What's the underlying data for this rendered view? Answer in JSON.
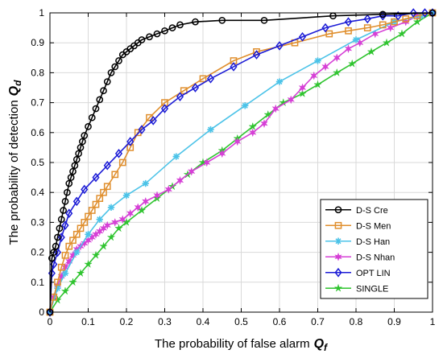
{
  "chart_data": {
    "type": "line",
    "xlabel": "The probability of false alarm",
    "xlabel_symbol": "Q",
    "xlabel_sub": "f",
    "ylabel": "The probability of detection",
    "ylabel_symbol": "Q",
    "ylabel_sub": "d",
    "xlim": [
      0,
      1
    ],
    "ylim": [
      0,
      1
    ],
    "xticks": [
      "0",
      "0.1",
      "0.2",
      "0.3",
      "0.4",
      "0.5",
      "0.6",
      "0.7",
      "0.8",
      "0.9",
      "1"
    ],
    "yticks": [
      "0",
      "0.1",
      "0.2",
      "0.3",
      "0.4",
      "0.5",
      "0.6",
      "0.7",
      "0.8",
      "0.9",
      "1"
    ],
    "grid": true,
    "legend_position": "lower-right",
    "series": [
      {
        "name": "D-S Cre",
        "color": "#000000",
        "marker": "circle",
        "x": [
          0,
          0.005,
          0.01,
          0.015,
          0.02,
          0.025,
          0.03,
          0.035,
          0.04,
          0.045,
          0.05,
          0.055,
          0.06,
          0.065,
          0.07,
          0.075,
          0.08,
          0.085,
          0.09,
          0.1,
          0.11,
          0.12,
          0.13,
          0.14,
          0.15,
          0.16,
          0.17,
          0.18,
          0.19,
          0.2,
          0.21,
          0.22,
          0.23,
          0.24,
          0.26,
          0.28,
          0.3,
          0.32,
          0.34,
          0.38,
          0.45,
          0.56,
          0.74,
          0.87,
          1.0
        ],
        "y": [
          0,
          0.18,
          0.2,
          0.22,
          0.25,
          0.28,
          0.31,
          0.34,
          0.37,
          0.4,
          0.43,
          0.45,
          0.47,
          0.49,
          0.51,
          0.53,
          0.55,
          0.57,
          0.59,
          0.62,
          0.65,
          0.68,
          0.71,
          0.74,
          0.77,
          0.8,
          0.82,
          0.84,
          0.86,
          0.87,
          0.88,
          0.89,
          0.9,
          0.91,
          0.92,
          0.93,
          0.94,
          0.95,
          0.96,
          0.97,
          0.975,
          0.975,
          0.99,
          0.995,
          1.0
        ]
      },
      {
        "name": "D-S Men",
        "color": "#e08f2e",
        "marker": "square",
        "x": [
          0,
          0.01,
          0.02,
          0.03,
          0.04,
          0.05,
          0.06,
          0.07,
          0.08,
          0.09,
          0.1,
          0.11,
          0.12,
          0.13,
          0.14,
          0.15,
          0.17,
          0.19,
          0.21,
          0.23,
          0.26,
          0.3,
          0.35,
          0.4,
          0.48,
          0.54,
          0.64,
          0.73,
          0.78,
          0.83,
          0.87,
          0.9,
          0.93,
          0.96,
          1.0
        ],
        "y": [
          0,
          0.05,
          0.1,
          0.15,
          0.19,
          0.22,
          0.24,
          0.26,
          0.28,
          0.3,
          0.32,
          0.34,
          0.36,
          0.38,
          0.4,
          0.42,
          0.46,
          0.5,
          0.55,
          0.6,
          0.65,
          0.7,
          0.74,
          0.78,
          0.84,
          0.87,
          0.9,
          0.93,
          0.94,
          0.95,
          0.96,
          0.97,
          0.98,
          0.99,
          1.0
        ]
      },
      {
        "name": "D-S Han",
        "color": "#4cc3e8",
        "marker": "asterisk",
        "x": [
          0,
          0.02,
          0.04,
          0.07,
          0.1,
          0.13,
          0.16,
          0.2,
          0.25,
          0.33,
          0.42,
          0.51,
          0.6,
          0.7,
          0.8,
          0.9,
          0.97,
          1.0
        ],
        "y": [
          0,
          0.08,
          0.13,
          0.2,
          0.26,
          0.31,
          0.35,
          0.39,
          0.43,
          0.52,
          0.61,
          0.69,
          0.77,
          0.84,
          0.91,
          0.97,
          0.99,
          1.0
        ]
      },
      {
        "name": "D-S Nhan",
        "color": "#d640d6",
        "marker": "hexagram",
        "x": [
          0,
          0.01,
          0.02,
          0.03,
          0.04,
          0.05,
          0.06,
          0.07,
          0.08,
          0.09,
          0.1,
          0.11,
          0.12,
          0.13,
          0.14,
          0.15,
          0.17,
          0.19,
          0.21,
          0.23,
          0.25,
          0.28,
          0.31,
          0.34,
          0.37,
          0.41,
          0.45,
          0.49,
          0.53,
          0.56,
          0.59,
          0.63,
          0.66,
          0.69,
          0.72,
          0.75,
          0.78,
          0.81,
          0.85,
          0.89,
          0.93,
          0.96,
          1.0
        ],
        "y": [
          0,
          0.05,
          0.09,
          0.12,
          0.15,
          0.17,
          0.19,
          0.21,
          0.22,
          0.23,
          0.24,
          0.25,
          0.26,
          0.27,
          0.28,
          0.29,
          0.3,
          0.31,
          0.33,
          0.35,
          0.37,
          0.39,
          0.41,
          0.44,
          0.47,
          0.5,
          0.53,
          0.57,
          0.6,
          0.63,
          0.68,
          0.71,
          0.75,
          0.79,
          0.82,
          0.85,
          0.88,
          0.9,
          0.93,
          0.95,
          0.97,
          0.99,
          1.0
        ]
      },
      {
        "name": "OPT LIN",
        "color": "#1c1cd6",
        "marker": "diamond",
        "x": [
          0,
          0.005,
          0.01,
          0.02,
          0.03,
          0.04,
          0.05,
          0.07,
          0.09,
          0.12,
          0.15,
          0.18,
          0.21,
          0.24,
          0.27,
          0.3,
          0.34,
          0.38,
          0.42,
          0.48,
          0.54,
          0.6,
          0.66,
          0.72,
          0.78,
          0.83,
          0.87,
          0.91,
          0.95,
          0.98,
          1.0
        ],
        "y": [
          0,
          0.13,
          0.16,
          0.2,
          0.25,
          0.29,
          0.33,
          0.37,
          0.41,
          0.45,
          0.49,
          0.53,
          0.57,
          0.61,
          0.64,
          0.68,
          0.72,
          0.75,
          0.78,
          0.82,
          0.86,
          0.89,
          0.92,
          0.95,
          0.97,
          0.98,
          0.99,
          0.99,
          1.0,
          1.0,
          1.0
        ]
      },
      {
        "name": "SINGLE",
        "color": "#2fc42f",
        "marker": "star",
        "x": [
          0,
          0.02,
          0.04,
          0.06,
          0.08,
          0.1,
          0.12,
          0.14,
          0.16,
          0.18,
          0.2,
          0.24,
          0.28,
          0.32,
          0.36,
          0.4,
          0.45,
          0.49,
          0.53,
          0.57,
          0.61,
          0.66,
          0.7,
          0.75,
          0.79,
          0.84,
          0.88,
          0.92,
          0.96,
          1.0
        ],
        "y": [
          0,
          0.04,
          0.07,
          0.1,
          0.13,
          0.16,
          0.19,
          0.22,
          0.25,
          0.28,
          0.3,
          0.34,
          0.38,
          0.42,
          0.46,
          0.5,
          0.54,
          0.58,
          0.62,
          0.66,
          0.7,
          0.73,
          0.76,
          0.8,
          0.83,
          0.87,
          0.9,
          0.93,
          0.97,
          1.0
        ]
      }
    ]
  }
}
